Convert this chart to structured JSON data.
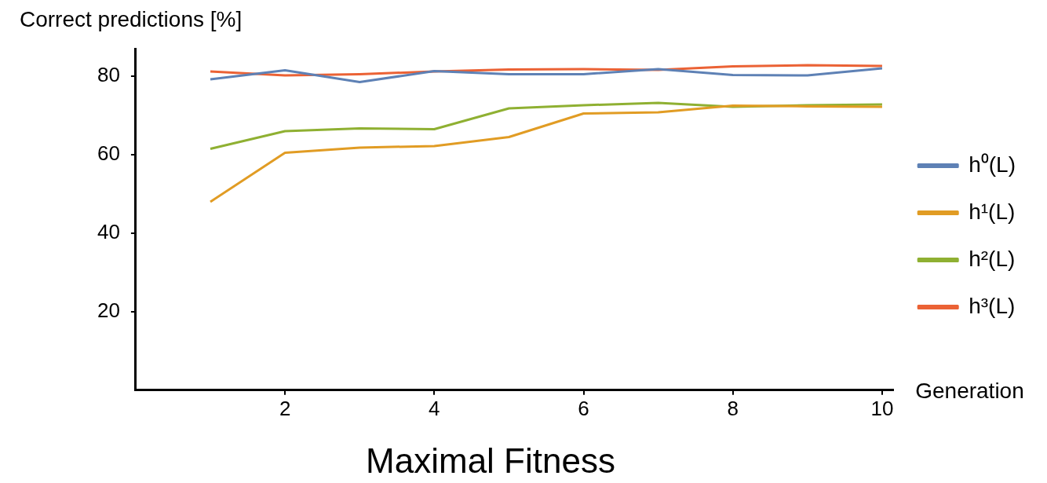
{
  "chart_data": {
    "type": "line",
    "title": "Maximal Fitness",
    "xlabel": "Generation",
    "ylabel": "Correct predictions [%]",
    "x": [
      1,
      2,
      3,
      4,
      5,
      6,
      7,
      8,
      9,
      10
    ],
    "series": [
      {
        "name": "h⁰(L)",
        "color": "#5e81b5",
        "values": [
          79.2,
          81.5,
          78.5,
          81.3,
          80.5,
          80.5,
          81.8,
          80.3,
          80.2,
          82
        ]
      },
      {
        "name": "h¹(L)",
        "color": "#e19c24",
        "values": [
          48,
          60.5,
          61.8,
          62.2,
          64.5,
          70.5,
          70.8,
          72.5,
          72.3,
          72.2
        ]
      },
      {
        "name": "h²(L)",
        "color": "#8fb032",
        "values": [
          61.5,
          66,
          66.7,
          66.5,
          71.8,
          72.6,
          73.2,
          72.2,
          72.6,
          72.8
        ]
      },
      {
        "name": "h³(L)",
        "color": "#eb6235",
        "values": [
          81.2,
          80.2,
          80.5,
          81.2,
          81.7,
          81.8,
          81.6,
          82.5,
          82.8,
          82.6
        ]
      }
    ],
    "xlim": [
      0,
      10.15
    ],
    "ylim": [
      0,
      87
    ],
    "xticks": [
      2,
      4,
      6,
      8,
      10
    ],
    "yticks": [
      20,
      40,
      60,
      80
    ],
    "grid": false,
    "legend": "right",
    "marker": "none",
    "line_style": "solid"
  }
}
